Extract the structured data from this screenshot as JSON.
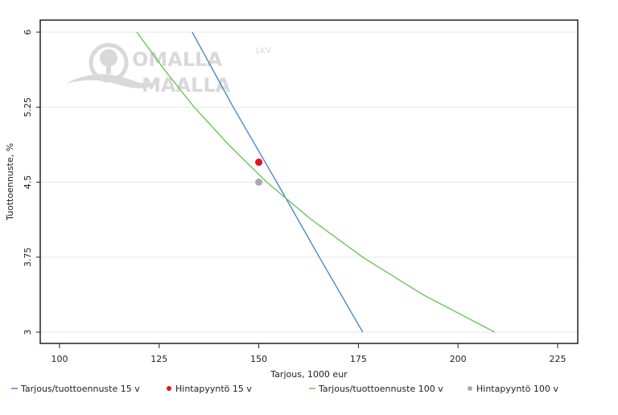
{
  "logo": {
    "line1": "OMALLA",
    "line2": "MAALLA",
    "sup": "LKV"
  },
  "chart_data": {
    "type": "line",
    "xlabel": "Tarjous, 1000 eur",
    "ylabel": "Tuottoennuste, %",
    "xlim": [
      95,
      230
    ],
    "ylim": [
      2.8,
      6.2
    ],
    "xticks": [
      100,
      125,
      150,
      175,
      200,
      225
    ],
    "yticks": [
      3,
      3.75,
      4.5,
      5.25,
      6
    ],
    "ytick_labels": [
      "3",
      "3.75",
      "4.5",
      "5.25",
      "6"
    ],
    "grid": "horizontal",
    "legend": "bottom",
    "series": [
      {
        "name": "Tarjous/tuottoennuste 15 v",
        "kind": "line",
        "color": "#4a8ac8",
        "x": [
          133.3,
          143.6,
          154.5,
          165.2,
          176.1
        ],
        "y": [
          6,
          5.25,
          4.5,
          3.75,
          3
        ]
      },
      {
        "name": "Hintapyyntö 15 v",
        "kind": "point",
        "color": "#e3141c",
        "x": [
          150
        ],
        "y": [
          4.7
        ]
      },
      {
        "name": "Tarjous/tuottoennuste 100 v",
        "kind": "line",
        "color": "#6cc45c",
        "x": [
          119.4,
          126.3,
          133.8,
          142.4,
          152.0,
          163.2,
          176.1,
          191.2,
          209.2
        ],
        "y": [
          6,
          5.625,
          5.25,
          4.875,
          4.5,
          4.125,
          3.75,
          3.375,
          3
        ]
      },
      {
        "name": "Hintapyyntö 100 v",
        "kind": "point",
        "color": "#aaaaaa",
        "x": [
          150
        ],
        "y": [
          4.5
        ]
      }
    ]
  }
}
